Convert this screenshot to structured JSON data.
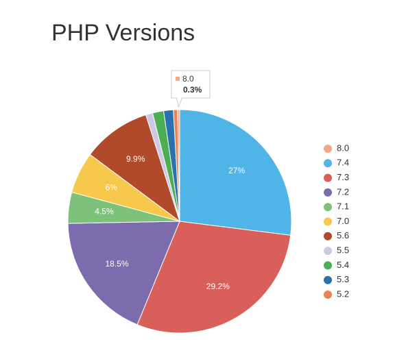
{
  "chart_data": {
    "type": "pie",
    "title": "PHP Versions",
    "categories": [
      "8.0",
      "7.4",
      "7.3",
      "7.2",
      "7.1",
      "7.0",
      "5.6",
      "5.5",
      "5.4",
      "5.3",
      "5.2"
    ],
    "values": [
      0.3,
      27,
      29.2,
      18.5,
      4.5,
      6,
      9.9,
      1.0,
      1.6,
      1.4,
      0.6
    ],
    "value_labels": [
      "0.3%",
      "27%",
      "29.2%",
      "18.5%",
      "4.5%",
      "6%",
      "9.9%",
      null,
      null,
      null,
      null
    ],
    "colors": [
      "#f0a987",
      "#4fb4e6",
      "#d9605a",
      "#7c6bad",
      "#7ec17a",
      "#f6c94d",
      "#b04a2a",
      "#cdc8e4",
      "#4cae52",
      "#2a72ad",
      "#e98456"
    ],
    "legend": "right"
  }
}
